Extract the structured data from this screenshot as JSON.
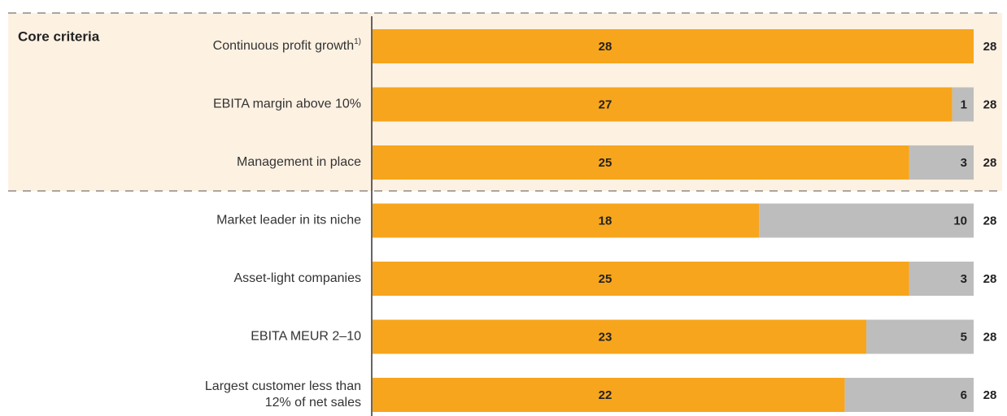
{
  "chart_data": {
    "type": "stacked_barh",
    "group_label": "Core criteria",
    "categories": [
      "Continuous profit growth",
      "EBITA margin above 10%",
      "Management in place",
      "Market leader in its niche",
      "Asset-light companies",
      "EBITA MEUR 2–10",
      [
        "Largest customer less than",
        "12% of net sales"
      ]
    ],
    "category_superscripts": [
      "1)",
      null,
      null,
      null,
      null,
      null,
      null
    ],
    "series": [
      {
        "color": "#f7a51c",
        "values": [
          28,
          27,
          25,
          18,
          25,
          23,
          22
        ]
      },
      {
        "color": "#bdbdbd",
        "values": [
          0,
          1,
          3,
          10,
          3,
          5,
          6
        ]
      }
    ],
    "totals": [
      28,
      28,
      28,
      28,
      28,
      28,
      28
    ],
    "xlim": [
      0,
      28
    ]
  }
}
